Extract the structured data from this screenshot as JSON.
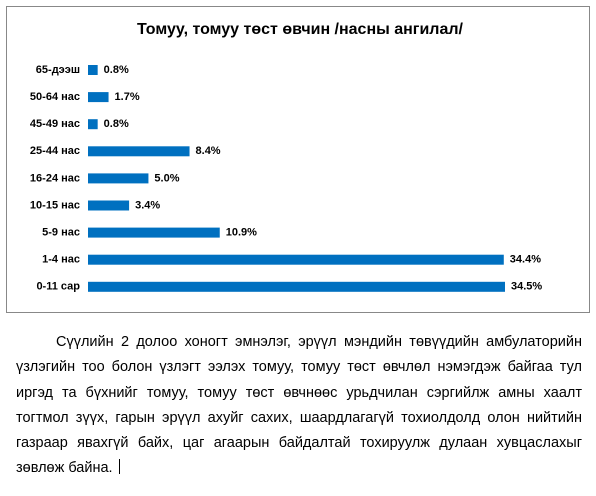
{
  "chart_data": {
    "type": "bar",
    "orientation": "horizontal",
    "title": "Томуу, томуу төст өвчин /насны ангилал/",
    "categories": [
      "65-дээш",
      "50-64 нас",
      "45-49 нас",
      "25-44 нас",
      "16-24 нас",
      "10-15 нас",
      "5-9 нас",
      "1-4 нас",
      "0-11 сар"
    ],
    "values": [
      0.8,
      1.7,
      0.8,
      8.4,
      5.0,
      3.4,
      10.9,
      34.4,
      34.5
    ],
    "value_labels": [
      "0.8%",
      "1.7%",
      "0.8%",
      "8.4%",
      "5.0%",
      "3.4%",
      "10.9%",
      "34.4%",
      "34.5%"
    ],
    "color": "#0070c0"
  },
  "document": {
    "paragraph": "Сүүлийн 2 долоо хоногт эмнэлэг, эрүүл мэндийн төвүүдийн амбулаторийн үзлэгийн тоо болон үзлэгт ээлэх томуу, томуу төст өвчлөл нэмэгдэж байгаа тул иргэд та бүхнийг томуу, томуу төст өвчнөөс урьдчилан сэргийлж амны хаалт тогтмол зүүх, гарын эрүүл ахуйг сахих, шаардлагагүй тохиолдолд олон нийтийн газраар явахгүй байх, цаг агаарын байдалтай тохируулж дулаан хувцаслахыг зөвлөж байна."
  }
}
